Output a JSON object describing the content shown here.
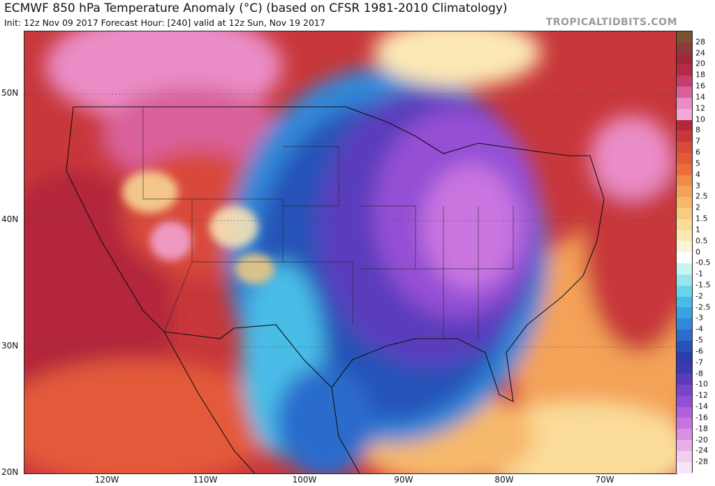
{
  "header": {
    "title": "ECMWF 850 hPa Temperature Anomaly (°C) (based on CFSR 1981-2010 Climatology)",
    "subtitle": "Init: 12z Nov 09 2017   Forecast Hour: [240]   valid at 12z Sun, Nov 19 2017",
    "credit": "TROPICALTIDBITS.COM"
  },
  "axes": {
    "lat_labels": [
      "50N",
      "40N",
      "30N",
      "20N"
    ],
    "lon_labels": [
      "120W",
      "110W",
      "100W",
      "90W",
      "80W",
      "70W"
    ]
  },
  "colorbar": {
    "labels": [
      "28",
      "24",
      "20",
      "18",
      "16",
      "14",
      "12",
      "10",
      "8",
      "7",
      "6",
      "5",
      "4",
      "3",
      "2.5",
      "2",
      "1.5",
      "1",
      "0.5",
      "0",
      "-0.5",
      "-1",
      "-1.5",
      "-2",
      "-2.5",
      "-3",
      "-4",
      "-5",
      "-6",
      "-7",
      "-8",
      "-10",
      "-12",
      "-14",
      "-16",
      "-18",
      "-20",
      "-24",
      "-28"
    ],
    "colors": [
      "#7a5230",
      "#8a3a3a",
      "#a0283c",
      "#b52a46",
      "#c73c6a",
      "#d9609a",
      "#ea8cc6",
      "#f3a8d8",
      "#b3283a",
      "#c8373a",
      "#d84a3a",
      "#e35a3a",
      "#ea6e3c",
      "#f08a48",
      "#f4a258",
      "#f6b86a",
      "#f8cc80",
      "#fadc98",
      "#fce8b4",
      "#fdf4d8",
      "#ffffff",
      "#c8f4f4",
      "#98e6ec",
      "#6cd4ea",
      "#48bce6",
      "#3aa2e0",
      "#3288d8",
      "#2c6ccc",
      "#2852b8",
      "#283ea8",
      "#3c38b0",
      "#5a3cbc",
      "#7844c8",
      "#9450d4",
      "#b060dc",
      "#c874e0",
      "#d890e4",
      "#e8b0ea",
      "#f2cef0",
      "#fae4f8"
    ]
  }
}
